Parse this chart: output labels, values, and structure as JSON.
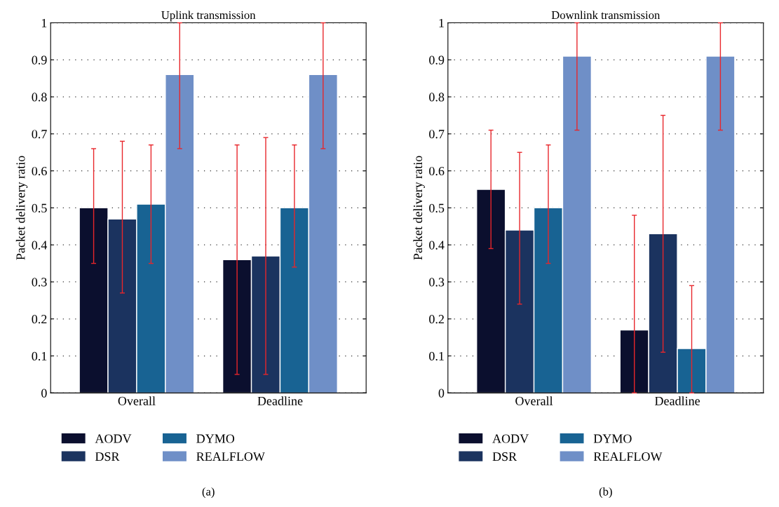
{
  "chart_data": [
    {
      "type": "bar",
      "title": "Uplink transmission",
      "ylabel": "Packet delivery ratio",
      "categories": [
        "Overall",
        "Deadline"
      ],
      "series": [
        {
          "name": "AODV",
          "color": "#0b0f2e",
          "values": [
            0.5,
            0.36
          ],
          "errors": [
            [
              0.35,
              0.66
            ],
            [
              0.05,
              0.67
            ]
          ]
        },
        {
          "name": "DSR",
          "color": "#1b335f",
          "values": [
            0.47,
            0.37
          ],
          "errors": [
            [
              0.27,
              0.68
            ],
            [
              0.05,
              0.69
            ]
          ]
        },
        {
          "name": "DYMO",
          "color": "#186393",
          "values": [
            0.51,
            0.5
          ],
          "errors": [
            [
              0.35,
              0.67
            ],
            [
              0.34,
              0.67
            ]
          ]
        },
        {
          "name": "REALFLOW",
          "color": "#6f8fc7",
          "values": [
            0.86,
            0.86
          ],
          "errors": [
            [
              0.66,
              1.0
            ],
            [
              0.66,
              1.0
            ]
          ]
        }
      ],
      "ylim": [
        0,
        1
      ],
      "yticks": [
        0,
        0.1,
        0.2,
        0.3,
        0.4,
        0.5,
        0.6,
        0.7,
        0.8,
        0.9,
        1
      ],
      "grid": "y",
      "legend": "bottom",
      "annotations": [
        "(a)"
      ]
    },
    {
      "type": "bar",
      "title": "Downlink transmission",
      "ylabel": "Packet delivery ratio",
      "categories": [
        "Overall",
        "Deadline"
      ],
      "series": [
        {
          "name": "AODV",
          "color": "#0b0f2e",
          "values": [
            0.55,
            0.17
          ],
          "errors": [
            [
              0.39,
              0.71
            ],
            [
              0,
              0.48
            ]
          ]
        },
        {
          "name": "DSR",
          "color": "#1b335f",
          "values": [
            0.44,
            0.43
          ],
          "errors": [
            [
              0.24,
              0.65
            ],
            [
              0.11,
              0.75
            ]
          ]
        },
        {
          "name": "DYMO",
          "color": "#186393",
          "values": [
            0.5,
            0.12
          ],
          "errors": [
            [
              0.35,
              0.67
            ],
            [
              0,
              0.29
            ]
          ]
        },
        {
          "name": "REALFLOW",
          "color": "#6f8fc7",
          "values": [
            0.91,
            0.91
          ],
          "errors": [
            [
              0.71,
              1.0
            ],
            [
              0.71,
              1.0
            ]
          ]
        }
      ],
      "ylim": [
        0,
        1
      ],
      "yticks": [
        0,
        0.1,
        0.2,
        0.3,
        0.4,
        0.5,
        0.6,
        0.7,
        0.8,
        0.9,
        1
      ],
      "grid": "y",
      "legend": "bottom",
      "annotations": [
        "(b)"
      ]
    }
  ]
}
